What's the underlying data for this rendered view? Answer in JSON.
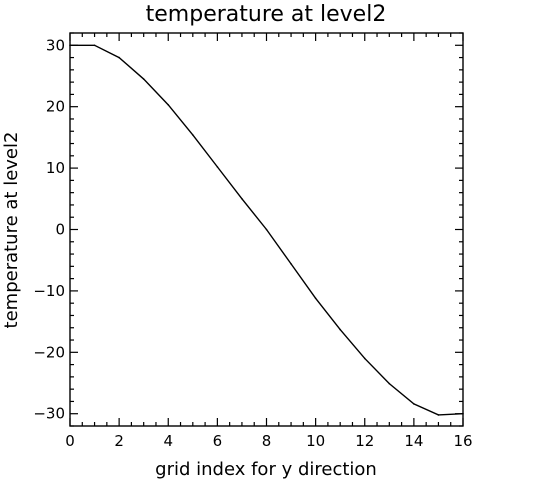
{
  "chart_data": {
    "type": "line",
    "title": "temperature at level2",
    "xlabel": "grid index for y direction",
    "ylabel": "temperature at level2",
    "xlim": [
      0,
      16
    ],
    "ylim": [
      -32,
      32
    ],
    "x_ticks": [
      0,
      2,
      4,
      6,
      8,
      10,
      12,
      14,
      16
    ],
    "y_ticks": [
      30,
      20,
      10,
      0,
      -10,
      -20,
      -30
    ],
    "x_minor_step": 0.5,
    "y_minor_step": 2,
    "grid": false,
    "series": [
      {
        "x": [
          0,
          1,
          2,
          3,
          4,
          5,
          6,
          7,
          8,
          9,
          10,
          11,
          12,
          13,
          14,
          15,
          16
        ],
        "y": [
          30,
          30,
          28,
          24.5,
          20.3,
          15.4,
          10.2,
          5,
          0,
          -5.6,
          -11.2,
          -16.3,
          -21,
          -25.1,
          -28.4,
          -30.2,
          -30
        ],
        "color": "#000000"
      }
    ]
  }
}
